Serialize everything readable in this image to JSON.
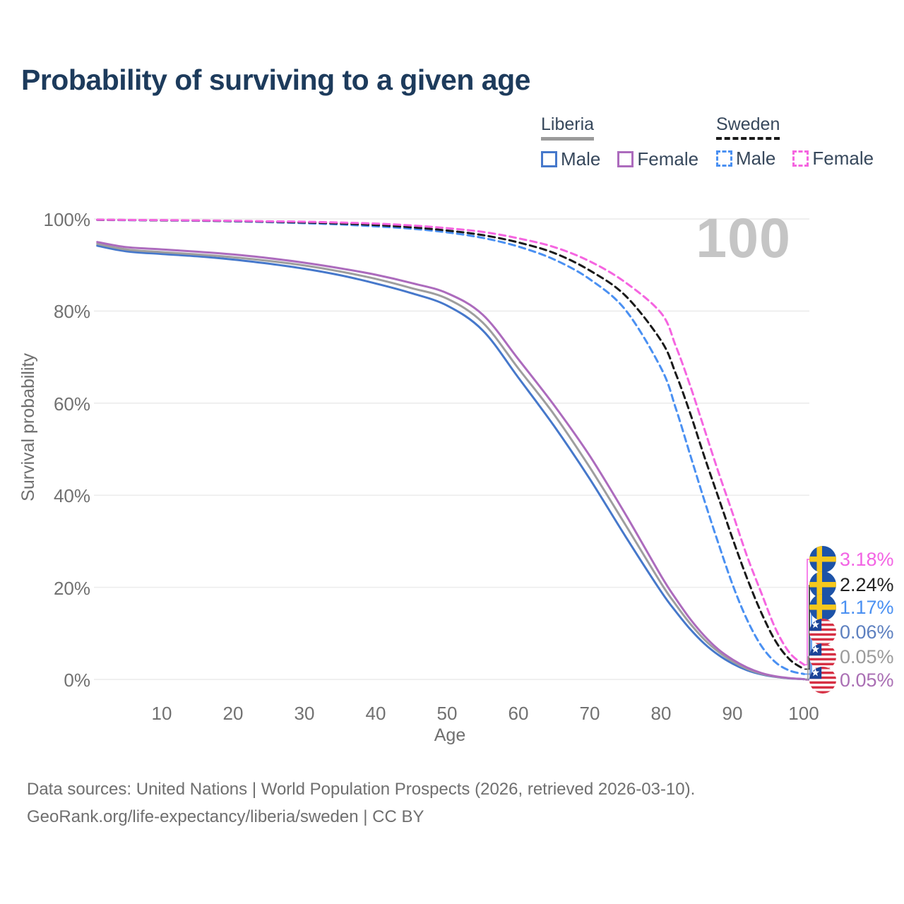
{
  "title": "Probability of surviving to a given age",
  "watermark": "100",
  "legend": {
    "groups": [
      {
        "country": "Liberia",
        "line": {
          "color": "#9a9a9a",
          "style": "solid"
        },
        "items": [
          {
            "label": "Male",
            "series": "liberia_male"
          },
          {
            "label": "Female",
            "series": "liberia_female"
          }
        ]
      },
      {
        "country": "Sweden",
        "line": {
          "color": "#1a1a1a",
          "style": "dashed"
        },
        "items": [
          {
            "label": "Male",
            "series": "sweden_male"
          },
          {
            "label": "Female",
            "series": "sweden_female"
          }
        ]
      }
    ]
  },
  "chart_data": {
    "type": "line",
    "title": "Probability of surviving to a given age",
    "xlabel": "Age",
    "ylabel": "Survival probability",
    "xlim": [
      0,
      100
    ],
    "ylim": [
      0,
      100
    ],
    "grid": true,
    "legend_position": "top-right",
    "x": [
      1,
      5,
      10,
      15,
      20,
      25,
      30,
      35,
      40,
      45,
      50,
      55,
      60,
      65,
      70,
      75,
      80,
      82,
      84,
      86,
      88,
      90,
      92,
      94,
      96,
      98,
      100
    ],
    "xtick_values": [
      10,
      20,
      30,
      40,
      50,
      60,
      70,
      80,
      90,
      100
    ],
    "xtick_labels": [
      "10",
      "20",
      "30",
      "40",
      "50",
      "60",
      "70",
      "80",
      "90",
      "100"
    ],
    "ytick_values": [
      100,
      80,
      60,
      40,
      20,
      0
    ],
    "ytick_labels": [
      "100%",
      "80%",
      "60%",
      "40%",
      "20%",
      "0%"
    ],
    "series": [
      {
        "name": "liberia_male",
        "country": "Liberia",
        "sex": "Male",
        "color": "#4678cb",
        "dash": false,
        "values": [
          94.2,
          93.0,
          92.4,
          91.9,
          91.2,
          90.3,
          89.2,
          87.8,
          86.0,
          83.9,
          81.2,
          75.8,
          65.5,
          55.0,
          43.5,
          31.0,
          19.0,
          14.8,
          11.0,
          7.8,
          5.3,
          3.4,
          2.0,
          1.1,
          0.55,
          0.22,
          0.06
        ]
      },
      {
        "name": "liberia_total",
        "country": "Liberia",
        "sex": "Both",
        "color": "#9e9e9e",
        "dash": false,
        "values": [
          94.6,
          93.4,
          92.8,
          92.3,
          91.7,
          90.9,
          89.9,
          88.6,
          87.0,
          85.0,
          82.7,
          77.5,
          67.5,
          57.5,
          46.0,
          33.5,
          20.8,
          16.3,
          12.2,
          8.7,
          6.0,
          3.9,
          2.3,
          1.25,
          0.6,
          0.25,
          0.05
        ]
      },
      {
        "name": "liberia_female",
        "country": "Liberia",
        "sex": "Female",
        "color": "#ac6bbd",
        "dash": false,
        "values": [
          95.0,
          93.9,
          93.4,
          92.9,
          92.3,
          91.5,
          90.5,
          89.3,
          87.9,
          86.1,
          83.9,
          79.2,
          69.5,
          59.5,
          48.5,
          35.8,
          22.4,
          17.6,
          13.2,
          9.5,
          6.5,
          4.3,
          2.6,
          1.4,
          0.68,
          0.28,
          0.05
        ]
      },
      {
        "name": "sweden_male",
        "country": "Sweden",
        "sex": "Male",
        "color": "#4a90f2",
        "dash": true,
        "values": [
          99.8,
          99.75,
          99.7,
          99.62,
          99.5,
          99.32,
          99.1,
          98.82,
          98.4,
          97.9,
          97.1,
          95.9,
          94.0,
          91.2,
          86.9,
          80.2,
          67.5,
          59.0,
          49.0,
          39.0,
          29.5,
          20.5,
          13.0,
          7.3,
          3.7,
          1.9,
          1.17
        ]
      },
      {
        "name": "sweden_total",
        "country": "Sweden",
        "sex": "Both",
        "color": "#1a1a1a",
        "dash": true,
        "values": [
          99.82,
          99.78,
          99.73,
          99.66,
          99.56,
          99.42,
          99.25,
          99.03,
          98.7,
          98.2,
          97.5,
          96.5,
          94.9,
          92.6,
          88.8,
          83.3,
          73.5,
          66.5,
          58.0,
          48.5,
          39.5,
          30.5,
          22.0,
          14.5,
          8.3,
          4.3,
          2.24
        ]
      },
      {
        "name": "sweden_female",
        "country": "Sweden",
        "sex": "Female",
        "color": "#f565e0",
        "dash": true,
        "values": [
          99.85,
          99.8,
          99.77,
          99.7,
          99.62,
          99.5,
          99.4,
          99.24,
          99.0,
          98.6,
          98.0,
          97.2,
          95.8,
          93.9,
          90.8,
          86.2,
          79.5,
          72.5,
          64.0,
          54.5,
          45.0,
          36.0,
          26.8,
          18.8,
          11.0,
          5.7,
          3.18
        ]
      }
    ],
    "end_labels": [
      {
        "series": "sweden_female",
        "flag": "se",
        "label": "3.18%",
        "color": "#f364e4"
      },
      {
        "series": "sweden_total",
        "flag": "se",
        "label": "2.24%",
        "color": "#222222"
      },
      {
        "series": "sweden_male",
        "flag": "se",
        "label": "1.17%",
        "color": "#4a90f2"
      },
      {
        "series": "liberia_male",
        "flag": "lr",
        "label": "0.06%",
        "color": "#5d80c0"
      },
      {
        "series": "liberia_total",
        "flag": "lr",
        "label": "0.05%",
        "color": "#9b9b9b"
      },
      {
        "series": "liberia_female",
        "flag": "lr",
        "label": "0.05%",
        "color": "#aa6fb4"
      }
    ],
    "colors": {
      "grid": "#ececec",
      "tick_text": "#717171",
      "title_text": "#1d3b5c",
      "watermark_text": "#c5c5c5"
    }
  },
  "footer": {
    "line1": "Data sources: United Nations | World Population Prospects (2026, retrieved 2026-03-10).",
    "line2": "GeoRank.org/life-expectancy/liberia/sweden | CC BY"
  }
}
